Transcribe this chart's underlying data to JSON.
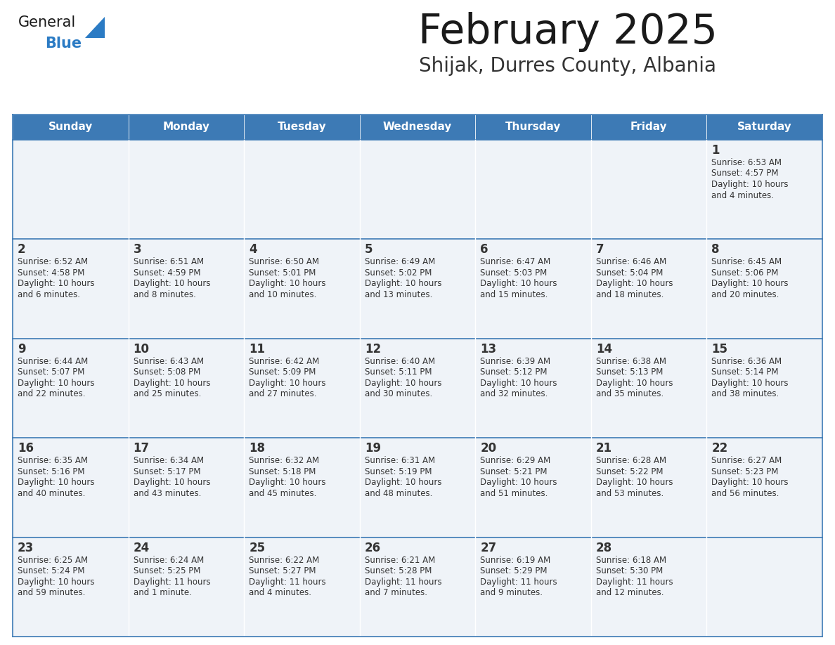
{
  "title": "February 2025",
  "subtitle": "Shijak, Durres County, Albania",
  "header_color": "#3d7ab5",
  "header_text_color": "#ffffff",
  "cell_bg": "#eff3f8",
  "cell_border_color": "#3d7ab5",
  "row_separator_color": "#3d7ab5",
  "day_names": [
    "Sunday",
    "Monday",
    "Tuesday",
    "Wednesday",
    "Thursday",
    "Friday",
    "Saturday"
  ],
  "title_color": "#1a1a1a",
  "subtitle_color": "#333333",
  "day_number_color": "#333333",
  "text_color": "#333333",
  "logo_general_color": "#1a1a1a",
  "logo_blue_color": "#2b7bc4",
  "calendar_data": {
    "1": {
      "sunrise": "6:53 AM",
      "sunset": "4:57 PM",
      "daylight": "10 hours and 4 minutes"
    },
    "2": {
      "sunrise": "6:52 AM",
      "sunset": "4:58 PM",
      "daylight": "10 hours and 6 minutes"
    },
    "3": {
      "sunrise": "6:51 AM",
      "sunset": "4:59 PM",
      "daylight": "10 hours and 8 minutes"
    },
    "4": {
      "sunrise": "6:50 AM",
      "sunset": "5:01 PM",
      "daylight": "10 hours and 10 minutes"
    },
    "5": {
      "sunrise": "6:49 AM",
      "sunset": "5:02 PM",
      "daylight": "10 hours and 13 minutes"
    },
    "6": {
      "sunrise": "6:47 AM",
      "sunset": "5:03 PM",
      "daylight": "10 hours and 15 minutes"
    },
    "7": {
      "sunrise": "6:46 AM",
      "sunset": "5:04 PM",
      "daylight": "10 hours and 18 minutes"
    },
    "8": {
      "sunrise": "6:45 AM",
      "sunset": "5:06 PM",
      "daylight": "10 hours and 20 minutes"
    },
    "9": {
      "sunrise": "6:44 AM",
      "sunset": "5:07 PM",
      "daylight": "10 hours and 22 minutes"
    },
    "10": {
      "sunrise": "6:43 AM",
      "sunset": "5:08 PM",
      "daylight": "10 hours and 25 minutes"
    },
    "11": {
      "sunrise": "6:42 AM",
      "sunset": "5:09 PM",
      "daylight": "10 hours and 27 minutes"
    },
    "12": {
      "sunrise": "6:40 AM",
      "sunset": "5:11 PM",
      "daylight": "10 hours and 30 minutes"
    },
    "13": {
      "sunrise": "6:39 AM",
      "sunset": "5:12 PM",
      "daylight": "10 hours and 32 minutes"
    },
    "14": {
      "sunrise": "6:38 AM",
      "sunset": "5:13 PM",
      "daylight": "10 hours and 35 minutes"
    },
    "15": {
      "sunrise": "6:36 AM",
      "sunset": "5:14 PM",
      "daylight": "10 hours and 38 minutes"
    },
    "16": {
      "sunrise": "6:35 AM",
      "sunset": "5:16 PM",
      "daylight": "10 hours and 40 minutes"
    },
    "17": {
      "sunrise": "6:34 AM",
      "sunset": "5:17 PM",
      "daylight": "10 hours and 43 minutes"
    },
    "18": {
      "sunrise": "6:32 AM",
      "sunset": "5:18 PM",
      "daylight": "10 hours and 45 minutes"
    },
    "19": {
      "sunrise": "6:31 AM",
      "sunset": "5:19 PM",
      "daylight": "10 hours and 48 minutes"
    },
    "20": {
      "sunrise": "6:29 AM",
      "sunset": "5:21 PM",
      "daylight": "10 hours and 51 minutes"
    },
    "21": {
      "sunrise": "6:28 AM",
      "sunset": "5:22 PM",
      "daylight": "10 hours and 53 minutes"
    },
    "22": {
      "sunrise": "6:27 AM",
      "sunset": "5:23 PM",
      "daylight": "10 hours and 56 minutes"
    },
    "23": {
      "sunrise": "6:25 AM",
      "sunset": "5:24 PM",
      "daylight": "10 hours and 59 minutes"
    },
    "24": {
      "sunrise": "6:24 AM",
      "sunset": "5:25 PM",
      "daylight": "11 hours and 1 minute"
    },
    "25": {
      "sunrise": "6:22 AM",
      "sunset": "5:27 PM",
      "daylight": "11 hours and 4 minutes"
    },
    "26": {
      "sunrise": "6:21 AM",
      "sunset": "5:28 PM",
      "daylight": "11 hours and 7 minutes"
    },
    "27": {
      "sunrise": "6:19 AM",
      "sunset": "5:29 PM",
      "daylight": "11 hours and 9 minutes"
    },
    "28": {
      "sunrise": "6:18 AM",
      "sunset": "5:30 PM",
      "daylight": "11 hours and 12 minutes"
    }
  },
  "weeks": [
    [
      null,
      null,
      null,
      null,
      null,
      null,
      1
    ],
    [
      2,
      3,
      4,
      5,
      6,
      7,
      8
    ],
    [
      9,
      10,
      11,
      12,
      13,
      14,
      15
    ],
    [
      16,
      17,
      18,
      19,
      20,
      21,
      22
    ],
    [
      23,
      24,
      25,
      26,
      27,
      28,
      null
    ]
  ]
}
